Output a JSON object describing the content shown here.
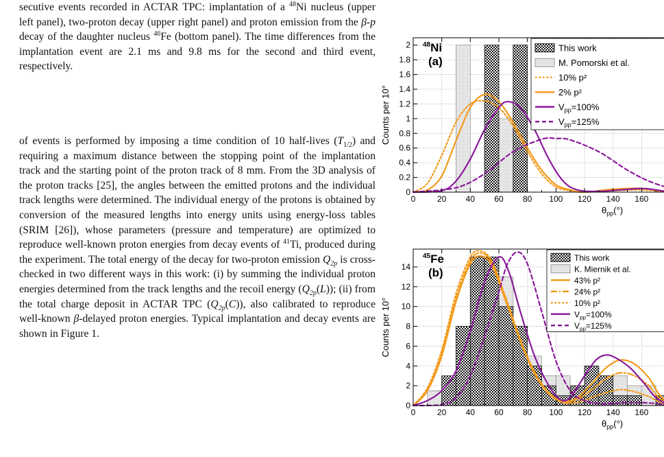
{
  "caption": {
    "parts": [
      {
        "t": "secutive events recorded in ACTAR TPC: implantation of a "
      },
      {
        "t": "48",
        "sup": true
      },
      {
        "t": "Ni nucleus (upper left panel), two-proton decay (upper right panel) and proton emission from the "
      },
      {
        "t": "β",
        "i": true
      },
      {
        "t": "-"
      },
      {
        "t": "p",
        "i": true
      },
      {
        "t": " decay of the daughter nucleus "
      },
      {
        "t": "46",
        "sup": true
      },
      {
        "t": "Fe (bottom panel). The time differences from the implantation event are 2.1 ms and 9.8 ms for the second and third event, respectively."
      }
    ]
  },
  "body": {
    "parts": [
      {
        "t": "of events is performed by imposing a time condition of 10 half-lives ("
      },
      {
        "t": "T",
        "i": true
      },
      {
        "t": "1/2",
        "sub": true
      },
      {
        "t": ") and requiring a maximum distance between the stopping point of the implantation track and the starting point of the proton track of 8 mm. From the 3D analysis of the proton tracks [25], the angles between the emitted protons and the individual track lengths were determined. The individual energy of the protons is obtained by conversion of the measured lengths into energy units using energy-loss tables (SRIM [26]), whose parameters (pressure and temperature) are optimized to reproduce well-known proton energies from decay events of "
      },
      {
        "t": "41",
        "sup": true
      },
      {
        "t": "Ti, produced during the experiment. The total energy of the decay for two-proton emission "
      },
      {
        "t": "Q",
        "i": true
      },
      {
        "t": "2p",
        "sub": true,
        "i": true
      },
      {
        "t": " is cross-checked in two different ways in this work: (i) by summing the individual proton energies determined from the track lengths and the recoil energy ("
      },
      {
        "t": "Q",
        "i": true
      },
      {
        "t": "2p",
        "sub": true,
        "i": true
      },
      {
        "t": "("
      },
      {
        "t": "L",
        "i": true
      },
      {
        "t": ")); (ii) from the total charge deposit in ACTAR TPC ("
      },
      {
        "t": "Q",
        "i": true
      },
      {
        "t": "2p",
        "sub": true,
        "i": true
      },
      {
        "t": "("
      },
      {
        "t": "C",
        "i": true
      },
      {
        "t": ")), also calibrated to reproduce well-known "
      },
      {
        "t": "β",
        "i": true
      },
      {
        "t": "-delayed proton energies. Typical implantation and decay events are shown in Figure 1."
      }
    ]
  },
  "chart_data": [
    {
      "type": "bar",
      "panel_label": "(a)",
      "nucleus_mass": "48",
      "nucleus_symbol": "Ni",
      "xlabel": "θpp(°)",
      "ylabel": "Counts per 10°",
      "xlim": [
        0,
        180
      ],
      "ylim": [
        0,
        2.1
      ],
      "xticks": [
        0,
        20,
        40,
        60,
        80,
        100,
        120,
        140,
        160,
        180
      ],
      "yticks": [
        0,
        0.2,
        0.4,
        0.6,
        0.8,
        1,
        1.2,
        1.4,
        1.6,
        1.8,
        2
      ],
      "yticklabels": [
        "0",
        "0.2",
        "0.4",
        "0.6",
        "0.8",
        "1",
        "1.2",
        "1.4",
        "1.6",
        "1.8",
        "2"
      ],
      "grid": true,
      "legend_position": "top-right",
      "bin_width": 10,
      "series": [
        {
          "name": "This work",
          "kind": "hist",
          "style": "checker",
          "bins": [
            [
              50,
              2
            ],
            [
              70,
              2
            ]
          ]
        },
        {
          "name": "M. Pomorski et al.",
          "kind": "hist",
          "style": "dots",
          "bins": [
            [
              30,
              2
            ],
            [
              50,
              1
            ],
            [
              60,
              1
            ]
          ]
        },
        {
          "name": "10% p²",
          "kind": "curve",
          "color": "#f39b1c",
          "dash": "dotted",
          "x": [
            0,
            10,
            20,
            30,
            40,
            50,
            60,
            70,
            80,
            90,
            100,
            110,
            120,
            140,
            160,
            180
          ],
          "y": [
            0,
            0.12,
            0.5,
            0.95,
            1.2,
            1.24,
            1.15,
            0.9,
            0.55,
            0.25,
            0.07,
            0.02,
            0,
            0.02,
            0.03,
            0
          ]
        },
        {
          "name": "2% p²",
          "kind": "curve",
          "color": "#f39b1c",
          "dash": "solid",
          "x": [
            0,
            10,
            20,
            30,
            40,
            50,
            60,
            70,
            80,
            90,
            100,
            110,
            120,
            140,
            160,
            180
          ],
          "y": [
            0,
            0.03,
            0.22,
            0.7,
            1.15,
            1.33,
            1.23,
            0.95,
            0.6,
            0.3,
            0.1,
            0.03,
            0,
            0.04,
            0.05,
            0
          ]
        },
        {
          "name": "Vpp=100%",
          "kind": "curve",
          "color": "#8b1a9b",
          "dash": "solid",
          "x": [
            0,
            20,
            30,
            40,
            50,
            60,
            66,
            75,
            85,
            95,
            105,
            115,
            130,
            145,
            160,
            170,
            180
          ],
          "y": [
            0,
            0.02,
            0.15,
            0.45,
            0.85,
            1.15,
            1.23,
            1.15,
            0.85,
            0.45,
            0.15,
            0.03,
            0.01,
            0.03,
            0.05,
            0.03,
            0
          ]
        },
        {
          "name": "Vpp=125%",
          "kind": "curve",
          "color": "#8b1a9b",
          "dash": "dashed",
          "x": [
            0,
            30,
            50,
            70,
            90,
            100,
            110,
            130,
            150,
            165,
            180
          ],
          "y": [
            0,
            0.06,
            0.25,
            0.55,
            0.72,
            0.73,
            0.71,
            0.55,
            0.3,
            0.15,
            0.05
          ]
        }
      ]
    },
    {
      "type": "bar",
      "panel_label": "(b)",
      "nucleus_mass": "45",
      "nucleus_symbol": "Fe",
      "xlabel": "θpp(°)",
      "ylabel": "Counts per 10°",
      "xlim": [
        0,
        180
      ],
      "ylim": [
        0,
        15.8
      ],
      "xticks": [
        0,
        20,
        40,
        60,
        80,
        100,
        120,
        140,
        160,
        180
      ],
      "yticks": [
        0,
        2,
        4,
        6,
        8,
        10,
        12,
        14
      ],
      "yticklabels": [
        "0",
        "2",
        "4",
        "6",
        "8",
        "10",
        "12",
        "14"
      ],
      "grid": true,
      "legend_position": "top-right",
      "bin_width": 10,
      "series": [
        {
          "name": "This work",
          "kind": "hist",
          "style": "checker",
          "bins": [
            [
              20,
              3
            ],
            [
              30,
              8
            ],
            [
              40,
              15
            ],
            [
              50,
              15
            ],
            [
              60,
              10
            ],
            [
              70,
              8
            ],
            [
              80,
              4
            ],
            [
              90,
              2
            ],
            [
              100,
              1
            ],
            [
              110,
              2
            ],
            [
              120,
              4
            ],
            [
              130,
              3
            ],
            [
              140,
              1
            ],
            [
              150,
              1
            ],
            [
              160,
              0
            ],
            [
              170,
              1
            ]
          ]
        },
        {
          "name": "K. Miernik et al.",
          "kind": "hist",
          "style": "dots",
          "bins": [
            [
              10,
              1.5
            ],
            [
              20,
              2.5
            ],
            [
              30,
              6
            ],
            [
              40,
              13
            ],
            [
              50,
              14
            ],
            [
              60,
              13
            ],
            [
              70,
              8
            ],
            [
              80,
              5
            ],
            [
              90,
              3
            ],
            [
              100,
              3
            ],
            [
              110,
              1.5
            ],
            [
              120,
              3
            ],
            [
              130,
              3
            ],
            [
              140,
              3
            ],
            [
              150,
              2
            ],
            [
              160,
              2
            ],
            [
              170,
              1
            ]
          ]
        },
        {
          "name": "43% p²",
          "kind": "curve",
          "color": "#f39b1c",
          "dash": "solid",
          "x": [
            0,
            10,
            20,
            30,
            40,
            47,
            55,
            65,
            75,
            85,
            95,
            105,
            115,
            125,
            135,
            145,
            155,
            165,
            172,
            180
          ],
          "y": [
            0,
            1.5,
            5,
            10.5,
            14.3,
            15.1,
            14.2,
            10.5,
            6.5,
            3.2,
            1.2,
            0.4,
            0.8,
            2.2,
            3.8,
            4.6,
            4.2,
            2.8,
            1.2,
            0
          ]
        },
        {
          "name": "24% p²",
          "kind": "curve",
          "color": "#f39b1c",
          "dash": "dashdot",
          "x": [
            0,
            10,
            20,
            30,
            40,
            47,
            55,
            65,
            75,
            85,
            95,
            105,
            115,
            125,
            135,
            145,
            155,
            165,
            172,
            180
          ],
          "y": [
            0,
            1.6,
            5.2,
            10.8,
            14.6,
            15.4,
            14.5,
            10.8,
            6.7,
            3.4,
            1.3,
            0.4,
            0.6,
            1.6,
            2.7,
            3.3,
            3,
            2,
            0.8,
            0
          ]
        },
        {
          "name": "10% p²",
          "kind": "curve",
          "color": "#f39b1c",
          "dash": "dotted",
          "x": [
            0,
            10,
            20,
            30,
            40,
            47,
            55,
            65,
            75,
            85,
            95,
            105,
            115,
            125,
            135,
            145,
            155,
            165,
            172,
            180
          ],
          "y": [
            0,
            1.8,
            5.6,
            11.3,
            15,
            15.6,
            14.6,
            10.8,
            6.6,
            3.3,
            1.2,
            0.3,
            0.3,
            0.8,
            1.3,
            1.6,
            1.4,
            0.9,
            0.4,
            0
          ]
        },
        {
          "name": "Vpp=100%",
          "kind": "curve",
          "color": "#8b1a9b",
          "dash": "solid",
          "x": [
            0,
            10,
            20,
            30,
            40,
            50,
            60,
            67,
            75,
            85,
            95,
            103,
            110,
            120,
            128,
            135,
            142,
            152,
            162,
            170,
            180
          ],
          "y": [
            0,
            0.5,
            1.5,
            3.5,
            7.5,
            12.5,
            15,
            13.5,
            9.5,
            5,
            2,
            0.6,
            0.8,
            3,
            4.6,
            5.1,
            4.8,
            3.8,
            2.2,
            0.8,
            0
          ]
        },
        {
          "name": "Vpp=125%",
          "kind": "curve",
          "color": "#8b1a9b",
          "dash": "dashed",
          "x": [
            0,
            20,
            30,
            40,
            50,
            60,
            66,
            73,
            80,
            90,
            100,
            110,
            120,
            130,
            140,
            150,
            160,
            170,
            180
          ],
          "y": [
            0,
            0.1,
            0.8,
            3,
            7,
            11.5,
            14.3,
            15.5,
            14.3,
            9.5,
            4.5,
            1.5,
            0.5,
            0.2,
            0.2,
            0.3,
            0.3,
            0.2,
            0
          ]
        }
      ]
    }
  ]
}
